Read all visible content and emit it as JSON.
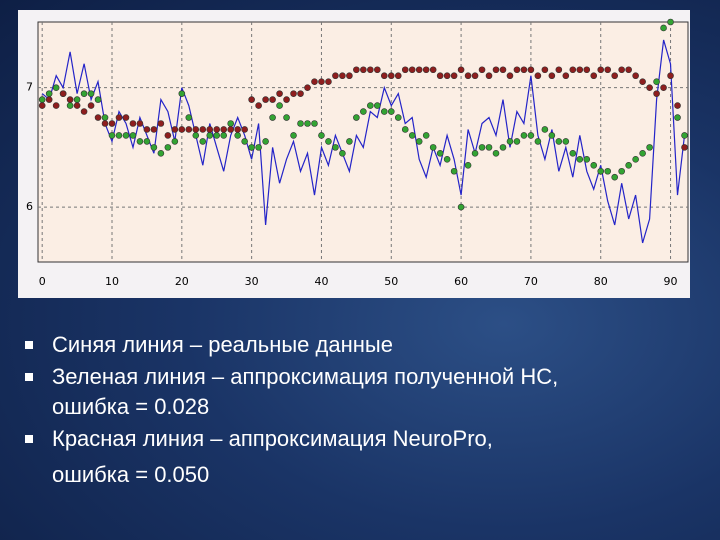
{
  "chart_data": {
    "type": "line",
    "x": [
      0,
      1,
      2,
      3,
      4,
      5,
      6,
      7,
      8,
      9,
      10,
      11,
      12,
      13,
      14,
      15,
      16,
      17,
      18,
      19,
      20,
      21,
      22,
      23,
      24,
      25,
      26,
      27,
      28,
      29,
      30,
      31,
      32,
      33,
      34,
      35,
      36,
      37,
      38,
      39,
      40,
      41,
      42,
      43,
      44,
      45,
      46,
      47,
      48,
      49,
      50,
      51,
      52,
      53,
      54,
      55,
      56,
      57,
      58,
      59,
      60,
      61,
      62,
      63,
      64,
      65,
      66,
      67,
      68,
      69,
      70,
      71,
      72,
      73,
      74,
      75,
      76,
      77,
      78,
      79,
      80,
      81,
      82,
      83,
      84,
      85,
      86,
      87,
      88,
      89,
      90,
      91,
      92
    ],
    "series": [
      {
        "color": "#2424c8",
        "style": "line",
        "values": [
          6.95,
          6.9,
          7.1,
          7.0,
          7.3,
          6.95,
          7.2,
          6.9,
          7.05,
          6.7,
          6.55,
          6.8,
          6.7,
          6.5,
          6.75,
          6.6,
          6.45,
          6.9,
          6.8,
          6.55,
          7.0,
          6.85,
          6.6,
          6.35,
          6.7,
          6.5,
          6.3,
          6.6,
          6.75,
          6.6,
          6.4,
          6.7,
          5.85,
          6.5,
          6.2,
          6.4,
          6.55,
          6.3,
          6.45,
          6.1,
          6.5,
          6.35,
          6.6,
          6.45,
          6.3,
          6.6,
          6.5,
          6.8,
          6.75,
          7.0,
          6.85,
          6.95,
          6.7,
          6.75,
          6.4,
          6.25,
          6.5,
          6.35,
          6.6,
          6.4,
          6.1,
          6.65,
          6.45,
          6.7,
          6.75,
          6.6,
          6.9,
          6.5,
          6.8,
          6.7,
          7.1,
          6.6,
          6.4,
          6.65,
          6.3,
          6.5,
          6.25,
          6.6,
          6.3,
          6.15,
          6.35,
          6.05,
          5.85,
          6.2,
          5.9,
          6.1,
          5.7,
          5.9,
          6.9,
          7.4,
          7.2,
          6.1,
          6.6
        ]
      },
      {
        "color": "#33a333",
        "style": "markers",
        "values": [
          6.9,
          6.95,
          7.0,
          6.95,
          6.85,
          6.9,
          6.95,
          6.95,
          6.9,
          6.75,
          6.6,
          6.6,
          6.6,
          6.6,
          6.55,
          6.55,
          6.5,
          6.45,
          6.5,
          6.55,
          6.95,
          6.75,
          6.6,
          6.55,
          6.6,
          6.6,
          6.6,
          6.7,
          6.6,
          6.55,
          6.5,
          6.5,
          6.55,
          6.75,
          6.85,
          6.75,
          6.6,
          6.7,
          6.7,
          6.7,
          6.6,
          6.55,
          6.5,
          6.45,
          6.55,
          6.75,
          6.8,
          6.85,
          6.85,
          6.8,
          6.8,
          6.75,
          6.65,
          6.6,
          6.55,
          6.6,
          6.5,
          6.45,
          6.4,
          6.3,
          6.0,
          6.35,
          6.45,
          6.5,
          6.5,
          6.45,
          6.5,
          6.55,
          6.55,
          6.6,
          6.6,
          6.55,
          6.65,
          6.6,
          6.55,
          6.55,
          6.45,
          6.4,
          6.4,
          6.35,
          6.3,
          6.3,
          6.25,
          6.3,
          6.35,
          6.4,
          6.45,
          6.5,
          7.05,
          7.5,
          7.55,
          6.75,
          6.6
        ]
      },
      {
        "color": "#8e1e1e",
        "style": "markers",
        "values": [
          6.85,
          6.9,
          6.85,
          6.95,
          6.9,
          6.85,
          6.8,
          6.85,
          6.75,
          6.7,
          6.7,
          6.75,
          6.75,
          6.7,
          6.7,
          6.65,
          6.65,
          6.7,
          6.6,
          6.65,
          6.65,
          6.65,
          6.65,
          6.65,
          6.65,
          6.65,
          6.65,
          6.65,
          6.65,
          6.65,
          6.9,
          6.85,
          6.9,
          6.9,
          6.95,
          6.9,
          6.95,
          6.95,
          7.0,
          7.05,
          7.05,
          7.05,
          7.1,
          7.1,
          7.1,
          7.15,
          7.15,
          7.15,
          7.15,
          7.1,
          7.1,
          7.1,
          7.15,
          7.15,
          7.15,
          7.15,
          7.15,
          7.1,
          7.1,
          7.1,
          7.15,
          7.1,
          7.1,
          7.15,
          7.1,
          7.15,
          7.15,
          7.1,
          7.15,
          7.15,
          7.15,
          7.1,
          7.15,
          7.1,
          7.15,
          7.1,
          7.15,
          7.15,
          7.15,
          7.1,
          7.15,
          7.15,
          7.1,
          7.15,
          7.15,
          7.1,
          7.05,
          7.0,
          6.95,
          7.0,
          7.1,
          6.85,
          6.5
        ]
      }
    ],
    "xlim": [
      -0.6,
      92.5
    ],
    "ylim": [
      5.54,
      7.55
    ],
    "xticks": [
      0,
      10,
      20,
      30,
      40,
      50,
      60,
      70,
      80,
      90
    ],
    "yticks": [
      6,
      7
    ],
    "grid": true
  },
  "slide": {
    "bullets": [
      [
        "Синяя линия – реальные  данные"
      ],
      [
        "Зеленая линия – аппроксимация полученной НС,",
        "ошибка = 0.028"
      ],
      [
        "Красная линия – аппроксимация NeuroPro,",
        "ошибка = 0.050"
      ]
    ]
  }
}
